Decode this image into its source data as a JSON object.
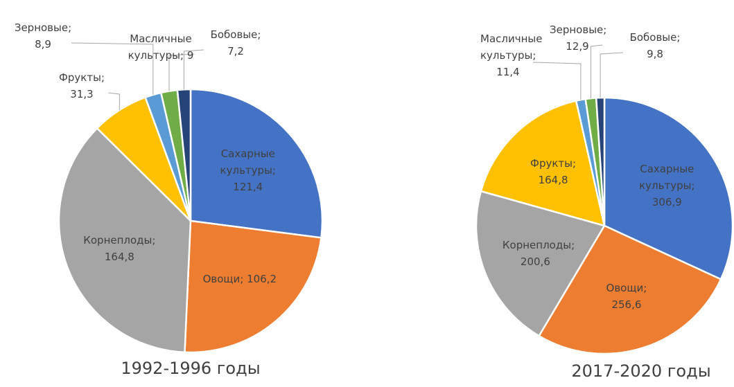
{
  "chart_data": [
    {
      "type": "pie",
      "title": "1992-1996 годы",
      "label_separator": "; ",
      "categories": [
        "Сахарные культуры",
        "Овощи",
        "Корнеплоды",
        "Фрукты",
        "Зерновые",
        "Масличные культуры",
        "Бобовые"
      ],
      "values": [
        121.4,
        106.2,
        164.8,
        31.3,
        8.9,
        9,
        7.2
      ],
      "value_labels": [
        "121,4",
        "106,2",
        "164,8",
        "31,3",
        "8,9",
        "9",
        "7,2"
      ],
      "colors": [
        "#4472c4",
        "#ed7d31",
        "#a5a5a5",
        "#ffc000",
        "#5b9bd5",
        "#70ad47",
        "#264478"
      ]
    },
    {
      "type": "pie",
      "title": "2017-2020 годы",
      "label_separator": "; ",
      "categories": [
        "Сахарные культуры",
        "Овощи",
        "Корнеплоды",
        "Фрукты",
        "Масличные культуры",
        "Зерновые",
        "Бобовые"
      ],
      "values": [
        306.9,
        256.6,
        200.6,
        164.8,
        11.4,
        12.9,
        9.8
      ],
      "value_labels": [
        "306,9",
        "256,6",
        "200,6",
        "164,8",
        "11,4",
        "12,9",
        "9,8"
      ],
      "colors": [
        "#4472c4",
        "#ed7d31",
        "#a5a5a5",
        "#ffc000",
        "#5b9bd5",
        "#70ad47",
        "#264478"
      ]
    }
  ]
}
